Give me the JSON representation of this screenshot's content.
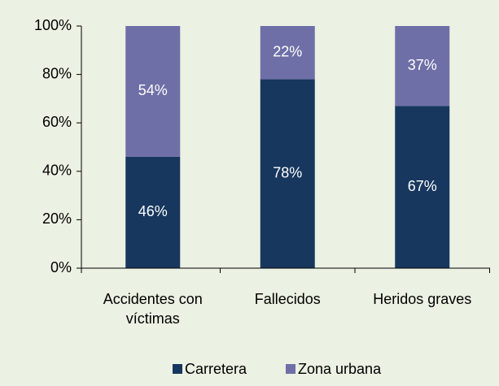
{
  "chart_data": {
    "type": "stacked_bar",
    "categories": [
      "Accidentes con víctimas",
      "Fallecidos",
      "Heridos graves"
    ],
    "series": [
      {
        "name": "Carretera",
        "color": "#17375e",
        "values": [
          46,
          78,
          67
        ],
        "value_labels": [
          "46%",
          "78%",
          "67%"
        ]
      },
      {
        "name": "Zona urbana",
        "color": "#6f6fa7",
        "values": [
          54,
          22,
          37
        ],
        "value_labels": [
          "54%",
          "22%",
          "37%"
        ]
      }
    ],
    "ylim": [
      0,
      100
    ],
    "yticks": [
      {
        "value": 0,
        "label": "0%"
      },
      {
        "value": 20,
        "label": "20%"
      },
      {
        "value": 40,
        "label": "40%"
      },
      {
        "value": 60,
        "label": "60%"
      },
      {
        "value": 80,
        "label": "80%"
      },
      {
        "value": 100,
        "label": "100%"
      }
    ],
    "legend": "bottom"
  }
}
